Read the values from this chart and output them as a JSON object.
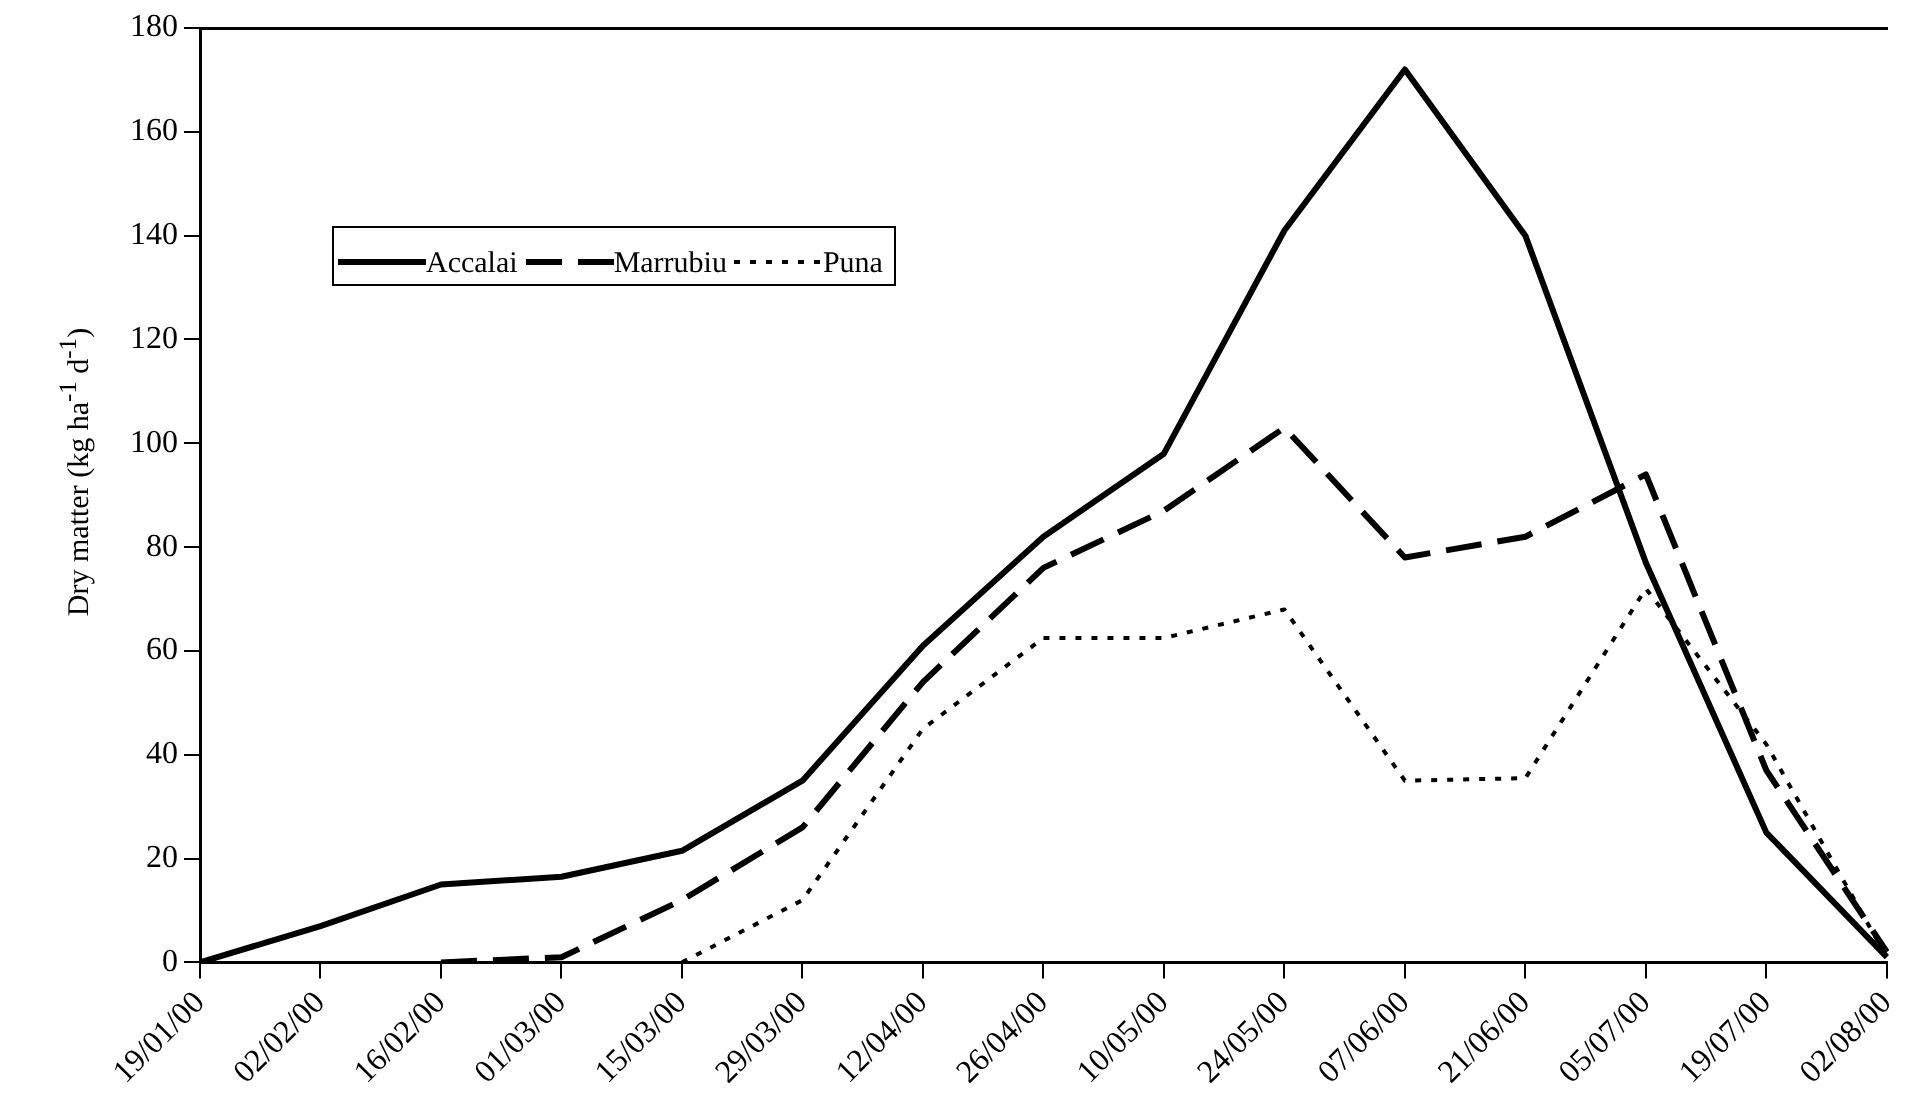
{
  "chart_data": {
    "type": "line",
    "ylabel": "Dry matter (kg ha$^{-1}$ d$^{-1}$)",
    "categories": [
      "19/01/00",
      "02/02/00",
      "16/02/00",
      "01/03/00",
      "15/03/00",
      "29/03/00",
      "12/04/00",
      "26/04/00",
      "10/05/00",
      "24/05/00",
      "07/06/00",
      "21/06/00",
      "05/07/00",
      "19/07/00",
      "02/08/00"
    ],
    "ylim": [
      0,
      180
    ],
    "yticks": [
      0,
      20,
      40,
      60,
      80,
      100,
      120,
      140,
      160,
      180
    ],
    "grid": false,
    "legend": "top left",
    "marker": "none",
    "series": [
      {
        "name": "Accalai",
        "color": "#000000",
        "line_style": "solid",
        "values": [
          0,
          7,
          15,
          16.5,
          21.5,
          35,
          61,
          82,
          98,
          141,
          172,
          140,
          77,
          25,
          1
        ]
      },
      {
        "name": "Marrubiu",
        "color": "#000000",
        "line_style": "dashed",
        "values": [
          null,
          null,
          0,
          1,
          12,
          26,
          54,
          76,
          87,
          103,
          78,
          82,
          94,
          37,
          2
        ]
      },
      {
        "name": "Puna",
        "color": "#000000",
        "line_style": "dotted",
        "values": [
          null,
          null,
          null,
          null,
          0,
          12,
          45,
          62.5,
          62.5,
          68,
          35,
          35.5,
          72,
          42,
          1
        ]
      }
    ]
  }
}
